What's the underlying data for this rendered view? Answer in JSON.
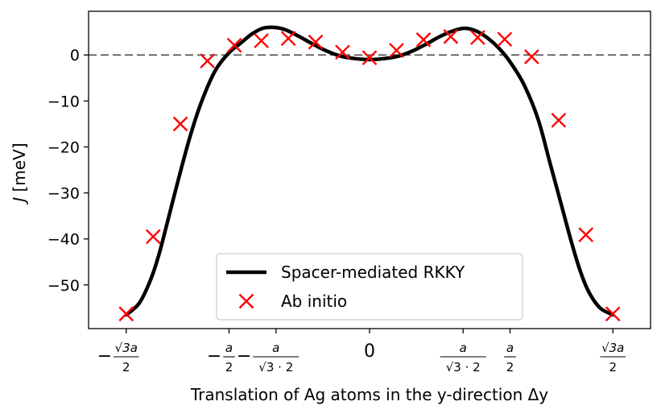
{
  "chart_data": {
    "type": "line",
    "xlabel": "Translation of Ag atoms in the y-direction Δy",
    "ylabel": "J [meV]",
    "xlim": [
      -1.0,
      1.0
    ],
    "ylim": [
      -59.5,
      9.5
    ],
    "yticks": [
      0,
      -10,
      -20,
      -30,
      -40,
      -50
    ],
    "ytick_labels": [
      "0",
      "−10",
      "−20",
      "−30",
      "−40",
      "−50"
    ],
    "xticks": [
      {
        "value": -0.866,
        "num": "√3a",
        "den": "2",
        "sign": "−"
      },
      {
        "value": -0.5,
        "num": "a",
        "den": "2",
        "sign": "−"
      },
      {
        "value": -0.333,
        "num": "a",
        "den": "√3 · 2",
        "sign": "−"
      },
      {
        "value": 0.0,
        "plain": "0"
      },
      {
        "value": 0.333,
        "num": "a",
        "den": "√3 · 2",
        "sign": ""
      },
      {
        "value": 0.5,
        "num": "a",
        "den": "2",
        "sign": ""
      },
      {
        "value": 0.866,
        "num": "√3a",
        "den": "2",
        "sign": ""
      }
    ],
    "reference_line": {
      "y": 0,
      "style": "dashed",
      "color": "#444444"
    },
    "legend": {
      "placement": "bottom-center",
      "entries": [
        {
          "label": "Spacer-mediated RKKY",
          "marker": "line",
          "color": "#000000"
        },
        {
          "label": "Ab initio",
          "marker": "x",
          "color": "#ff0000"
        }
      ]
    },
    "series": [
      {
        "name": "Spacer-mediated RKKY",
        "kind": "line",
        "color": "#000000",
        "x": [
          -0.866,
          -0.82,
          -0.78,
          -0.75,
          -0.72,
          -0.68,
          -0.64,
          -0.6,
          -0.55,
          -0.5,
          -0.46,
          -0.42,
          -0.38,
          -0.34,
          -0.3,
          -0.25,
          -0.2,
          -0.15,
          -0.1,
          -0.05,
          0.0,
          0.05,
          0.1,
          0.15,
          0.2,
          0.25,
          0.3,
          0.34,
          0.38,
          0.42,
          0.46,
          0.5,
          0.55,
          0.6,
          0.64,
          0.68,
          0.72,
          0.75,
          0.78,
          0.82,
          0.866
        ],
        "y": [
          -56.5,
          -54.0,
          -49.0,
          -43.5,
          -36.5,
          -27.0,
          -18.0,
          -10.5,
          -3.5,
          0.5,
          2.5,
          4.5,
          5.8,
          6.0,
          5.5,
          4.0,
          2.3,
          0.8,
          -0.3,
          -0.8,
          -1.0,
          -0.8,
          -0.3,
          0.8,
          2.3,
          4.0,
          5.3,
          5.8,
          5.2,
          3.7,
          1.5,
          -1.5,
          -6.5,
          -14.0,
          -23.0,
          -32.0,
          -41.0,
          -47.0,
          -51.5,
          -55.0,
          -56.5
        ]
      },
      {
        "name": "Ab initio",
        "kind": "scatter",
        "marker": "x",
        "color": "#ff0000",
        "x": [
          -0.866,
          -0.77,
          -0.673,
          -0.577,
          -0.481,
          -0.385,
          -0.289,
          -0.192,
          -0.096,
          0.0,
          0.096,
          0.192,
          0.289,
          0.385,
          0.481,
          0.577,
          0.673,
          0.77,
          0.866
        ],
        "y": [
          -56.3,
          -39.5,
          -15.0,
          -1.3,
          2.1,
          3.1,
          3.6,
          2.8,
          0.6,
          -0.6,
          1.0,
          3.3,
          4.0,
          3.8,
          3.4,
          -0.4,
          -14.2,
          -39.1,
          -56.3
        ]
      }
    ]
  }
}
